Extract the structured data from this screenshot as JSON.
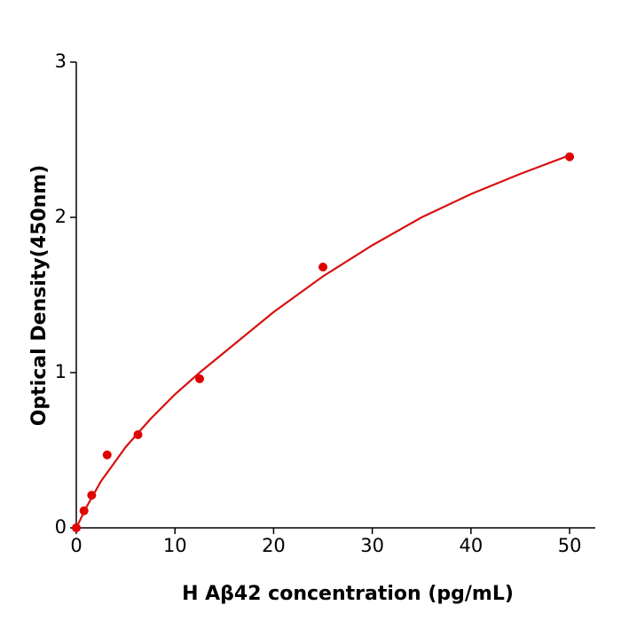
{
  "chart_data": {
    "type": "scatter",
    "x_label": "H  Aβ42 concentration (pg/mL)",
    "y_label": "Optical Density(450nm)",
    "series": [
      {
        "color": "#e00000",
        "x": [
          0,
          0.78,
          1.56,
          3.125,
          6.25,
          12.5,
          25,
          50
        ],
        "values": [
          0,
          0.11,
          0.21,
          0.47,
          0.6,
          0.96,
          1.68,
          2.39
        ]
      },
      {
        "type": "line",
        "color": "#d81010",
        "x": [
          0,
          1,
          2.5,
          5,
          7.5,
          10,
          12.5,
          15,
          20,
          25,
          30,
          35,
          40,
          45,
          50
        ],
        "values": [
          0,
          0.13,
          0.3,
          0.52,
          0.7,
          0.86,
          1.0,
          1.13,
          1.39,
          1.62,
          1.82,
          2.0,
          2.15,
          2.28,
          2.4
        ]
      }
    ],
    "xlim": [
      0,
      52.6
    ],
    "ylim": [
      0,
      3
    ],
    "xticks": [
      0,
      10,
      20,
      30,
      40,
      50
    ],
    "yticks": [
      0,
      1,
      2,
      3
    ]
  }
}
